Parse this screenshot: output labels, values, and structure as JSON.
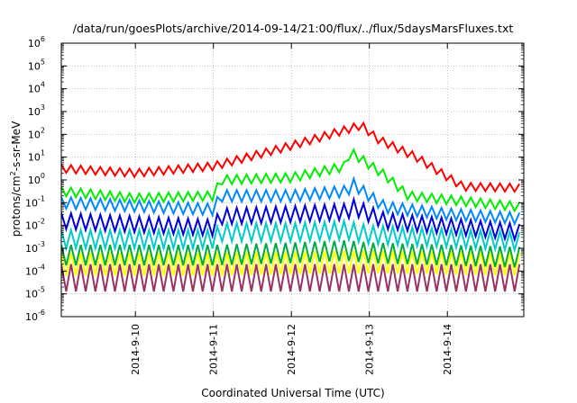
{
  "chart_data": {
    "type": "line",
    "title": "/data/run/goesPlots/archive/2014-09-14/21:00/flux/../flux/5daysMarsFluxes.txt",
    "xlabel": "Coordinated Universal Time (UTC)",
    "ylabel_main": "protons/cm",
    "ylabel_sup": "2",
    "ylabel_rest": "-s-sr-MeV",
    "x_range_days": [
      -0.95,
      4.98
    ],
    "x_ticks": [
      {
        "day": 0,
        "label": "2014-9-10"
      },
      {
        "day": 1,
        "label": "2014-9-11"
      },
      {
        "day": 2,
        "label": "2014-9-12"
      },
      {
        "day": 3,
        "label": "2014-9-13"
      },
      {
        "day": 4,
        "label": "2014-9-14"
      }
    ],
    "y_scale": "log",
    "y_range_exp": [
      -6,
      6
    ],
    "y_ticks": [
      {
        "base": "10",
        "exp": "6"
      },
      {
        "base": "10",
        "exp": "5"
      },
      {
        "base": "10",
        "exp": "4"
      },
      {
        "base": "10",
        "exp": "3"
      },
      {
        "base": "10",
        "exp": "2"
      },
      {
        "base": "10",
        "exp": "1"
      },
      {
        "base": "10",
        "exp": "0"
      },
      {
        "base": "10",
        "exp": "-1"
      },
      {
        "base": "10",
        "exp": "-2"
      },
      {
        "base": "10",
        "exp": "-3"
      },
      {
        "base": "10",
        "exp": "-4"
      },
      {
        "base": "10",
        "exp": "-5"
      },
      {
        "base": "10",
        "exp": "-6"
      }
    ],
    "grid": true,
    "series": [
      {
        "color": "#993366",
        "profile": [
          [
            -0.95,
            -4.3
          ],
          [
            1,
            -4.3
          ],
          [
            2,
            -4.3
          ],
          [
            2.7,
            -4.3
          ],
          [
            3,
            -4.3
          ],
          [
            4.98,
            -4.3
          ]
        ],
        "amp": 1.2,
        "period": 0.125
      },
      {
        "color": "#ffff00",
        "profile": [
          [
            -0.95,
            -3.7
          ],
          [
            1,
            -3.7
          ],
          [
            2,
            -3.65
          ],
          [
            2.7,
            -3.6
          ],
          [
            3,
            -3.6
          ],
          [
            4.98,
            -3.7
          ]
        ],
        "amp": 1.0,
        "period": 0.125
      },
      {
        "color": "#00aa44",
        "profile": [
          [
            -0.95,
            -3.3
          ],
          [
            1,
            -3.3
          ],
          [
            2,
            -3.2
          ],
          [
            2.7,
            -3.1
          ],
          [
            3,
            -3.2
          ],
          [
            4.98,
            -3.4
          ]
        ],
        "amp": 0.9,
        "period": 0.125
      },
      {
        "color": "#00cccc",
        "profile": [
          [
            -0.95,
            -2.6
          ],
          [
            1,
            -2.6
          ],
          [
            1.1,
            -2.3
          ],
          [
            2,
            -2.3
          ],
          [
            2.7,
            -2.2
          ],
          [
            3,
            -2.4
          ],
          [
            4.98,
            -2.7
          ]
        ],
        "amp": 0.8,
        "period": 0.125
      },
      {
        "color": "#0000dd",
        "profile": [
          [
            -0.95,
            -1.8
          ],
          [
            1,
            -2.1
          ],
          [
            1.1,
            -1.6
          ],
          [
            2,
            -1.5
          ],
          [
            2.7,
            -1.4
          ],
          [
            2.8,
            -1.2
          ],
          [
            3.2,
            -1.8
          ],
          [
            4.98,
            -2.3
          ]
        ],
        "amp": 0.7,
        "period": 0.125
      },
      {
        "color": "#0088ff",
        "profile": [
          [
            -0.95,
            -1.0
          ],
          [
            1,
            -1.3
          ],
          [
            1.1,
            -0.7
          ],
          [
            2,
            -0.7
          ],
          [
            2.7,
            -0.5
          ],
          [
            2.8,
            -0.2
          ],
          [
            3.2,
            -1.2
          ],
          [
            4,
            -1.5
          ],
          [
            4.98,
            -1.7
          ]
        ],
        "amp": 0.5,
        "period": 0.125
      },
      {
        "color": "#00ee00",
        "profile": [
          [
            -0.95,
            -0.5
          ],
          [
            0,
            -0.8
          ],
          [
            1,
            -0.7
          ],
          [
            1.1,
            0.0
          ],
          [
            2,
            0.1
          ],
          [
            2.7,
            0.6
          ],
          [
            2.75,
            1.25
          ],
          [
            3.2,
            0.2
          ],
          [
            3.5,
            -0.7
          ],
          [
            4.98,
            -1.2
          ]
        ],
        "amp": 0.4,
        "period": 0.125
      },
      {
        "color": "#ff0000",
        "profile": [
          [
            -0.95,
            0.5
          ],
          [
            0,
            0.3
          ],
          [
            1,
            0.6
          ],
          [
            2,
            1.5
          ],
          [
            2.5,
            2.0
          ],
          [
            2.9,
            2.4
          ],
          [
            3.1,
            1.8
          ],
          [
            3.6,
            1.0
          ],
          [
            4.2,
            -0.3
          ],
          [
            4.98,
            -0.35
          ]
        ],
        "amp": 0.35,
        "period": 0.125
      }
    ]
  }
}
